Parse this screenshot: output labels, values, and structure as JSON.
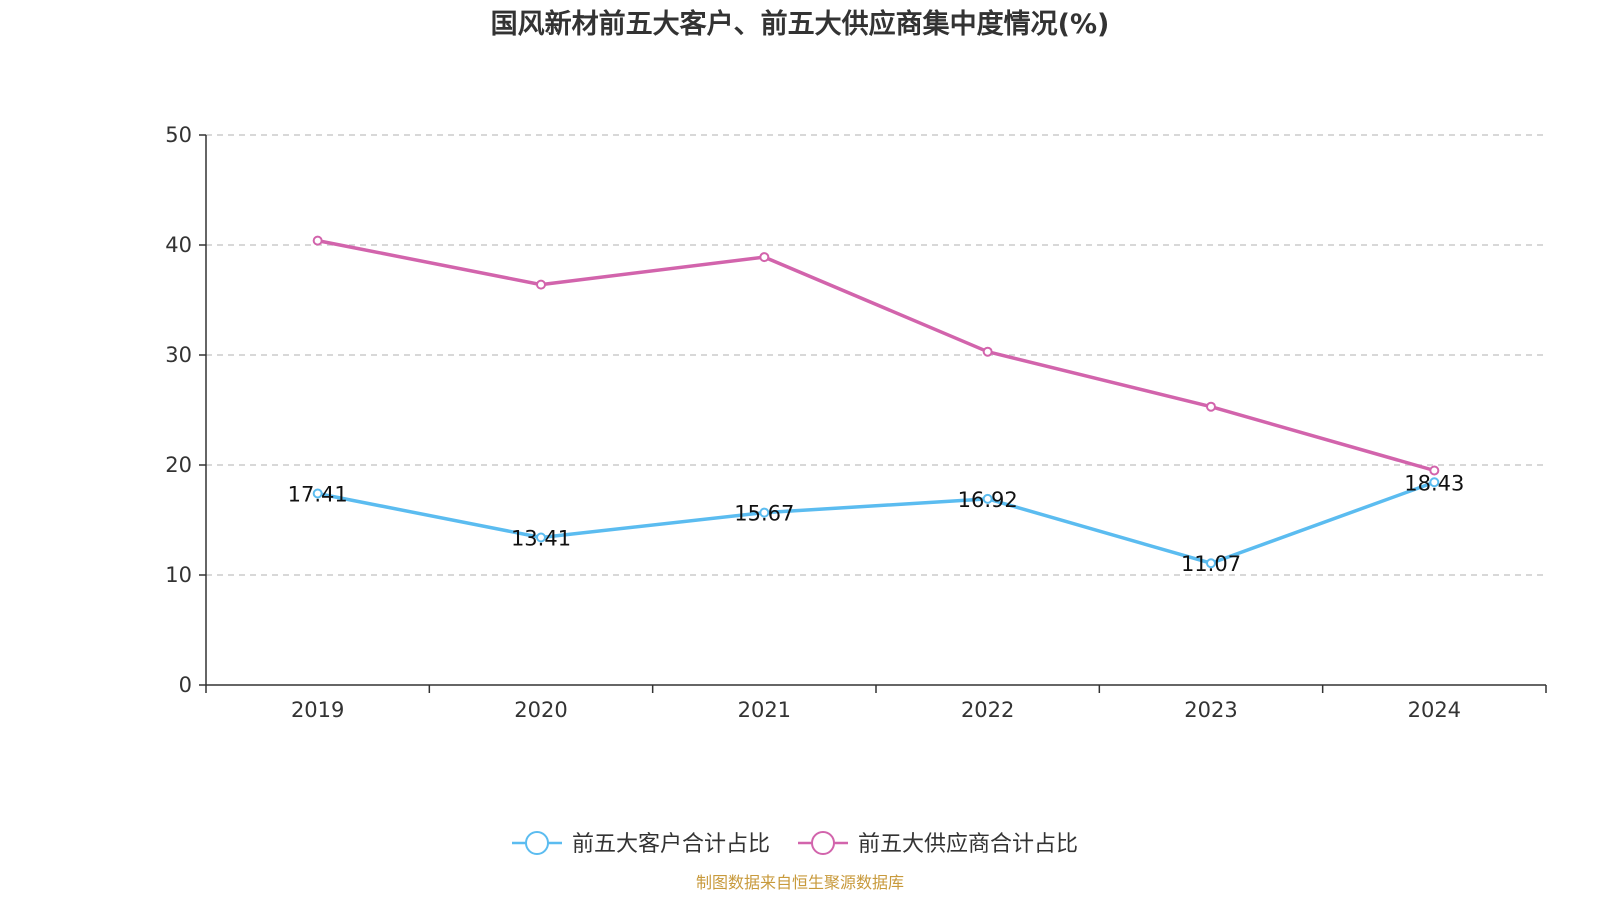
{
  "chart_data": {
    "type": "line",
    "title": "国风新材前五大客户、前五大供应商集中度情况(%)",
    "categories": [
      "2019",
      "2020",
      "2021",
      "2022",
      "2023",
      "2024"
    ],
    "ylim": [
      0,
      50
    ],
    "yticks": [
      0,
      10,
      20,
      30,
      40,
      50
    ],
    "grid": true,
    "legend_position": "bottom-center",
    "series": [
      {
        "name": "前五大客户合计占比",
        "color": "#5bbcf0",
        "values": [
          17.41,
          13.41,
          15.67,
          16.92,
          11.07,
          18.43
        ],
        "data_labels": [
          "17.41",
          "13.41",
          "15.67",
          "16.92",
          "11.07",
          "18.43"
        ]
      },
      {
        "name": "前五大供应商合计占比",
        "color": "#d264ac",
        "values": [
          40.4,
          36.4,
          38.9,
          30.3,
          25.3,
          19.5
        ],
        "data_labels": []
      }
    ],
    "source": "制图数据来自恒生聚源数据库"
  },
  "colors": {
    "axis": "#333333",
    "grid": "#cccccc",
    "source": "#c89a3c"
  }
}
